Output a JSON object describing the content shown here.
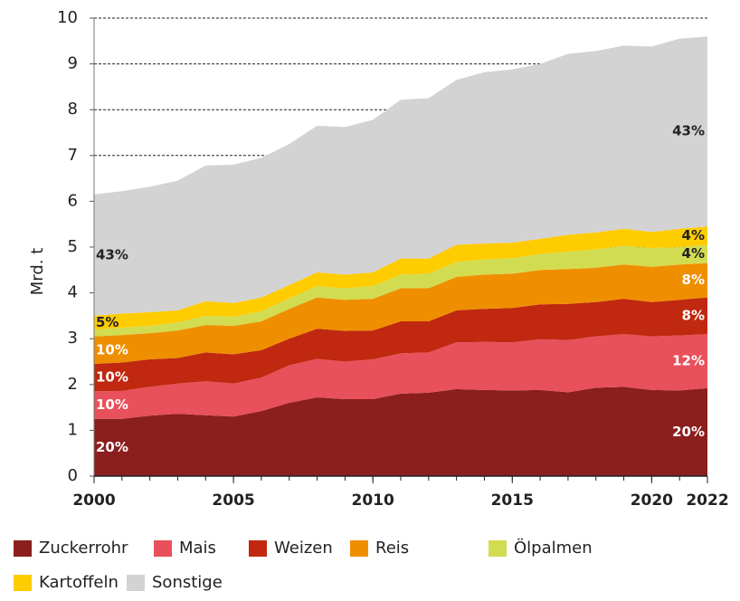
{
  "chart_data": {
    "type": "stacked-area",
    "y_label": "Mrd. t",
    "x": [
      2000,
      2001,
      2002,
      2003,
      2004,
      2005,
      2006,
      2007,
      2008,
      2009,
      2010,
      2011,
      2012,
      2013,
      2014,
      2015,
      2016,
      2017,
      2018,
      2019,
      2020,
      2021,
      2022
    ],
    "xlim": [
      2000,
      2022
    ],
    "xticks": [
      2000,
      2005,
      2010,
      2015,
      2020,
      2022
    ],
    "ylim": [
      0,
      10
    ],
    "yticks": [
      0,
      1,
      2,
      3,
      4,
      5,
      6,
      7,
      8,
      9,
      10
    ],
    "grid": true,
    "series": [
      {
        "name": "Zuckerrohr",
        "color": "#8b1e1e",
        "labels": [
          "20%",
          "20%"
        ],
        "values": [
          1.25,
          1.25,
          1.32,
          1.36,
          1.33,
          1.3,
          1.42,
          1.6,
          1.72,
          1.68,
          1.68,
          1.8,
          1.82,
          1.9,
          1.88,
          1.87,
          1.88,
          1.83,
          1.93,
          1.95,
          1.88,
          1.87,
          1.92
        ]
      },
      {
        "name": "Mais",
        "color": "#e8505b",
        "labels": [
          "10%",
          "12%"
        ],
        "values": [
          0.6,
          0.61,
          0.63,
          0.66,
          0.74,
          0.72,
          0.73,
          0.82,
          0.84,
          0.82,
          0.87,
          0.88,
          0.88,
          1.02,
          1.05,
          1.05,
          1.11,
          1.14,
          1.12,
          1.15,
          1.17,
          1.2,
          1.18
        ]
      },
      {
        "name": "Weizen",
        "color": "#c0280f",
        "labels": [
          "10%",
          "8%"
        ],
        "values": [
          0.6,
          0.62,
          0.6,
          0.56,
          0.63,
          0.64,
          0.6,
          0.58,
          0.66,
          0.67,
          0.63,
          0.7,
          0.68,
          0.7,
          0.72,
          0.75,
          0.76,
          0.79,
          0.75,
          0.77,
          0.75,
          0.78,
          0.8
        ]
      },
      {
        "name": "Reis",
        "color": "#ef8f00",
        "labels": [
          "10%",
          "8%"
        ],
        "values": [
          0.6,
          0.6,
          0.57,
          0.6,
          0.6,
          0.62,
          0.63,
          0.65,
          0.68,
          0.68,
          0.69,
          0.72,
          0.72,
          0.73,
          0.75,
          0.75,
          0.75,
          0.76,
          0.75,
          0.75,
          0.77,
          0.77,
          0.75
        ]
      },
      {
        "name": "Ölpalmen",
        "color": "#d2dc50",
        "labels": [
          null,
          "4%"
        ],
        "values": [
          0.15,
          0.16,
          0.16,
          0.18,
          0.2,
          0.2,
          0.22,
          0.23,
          0.25,
          0.25,
          0.28,
          0.3,
          0.32,
          0.33,
          0.33,
          0.34,
          0.35,
          0.38,
          0.4,
          0.41,
          0.41,
          0.38,
          0.4
        ]
      },
      {
        "name": "Kartoffeln",
        "color": "#ffcc00",
        "labels": [
          "5%",
          "4%"
        ],
        "values": [
          0.3,
          0.31,
          0.3,
          0.26,
          0.32,
          0.3,
          0.3,
          0.29,
          0.3,
          0.3,
          0.3,
          0.35,
          0.33,
          0.37,
          0.35,
          0.34,
          0.33,
          0.37,
          0.37,
          0.37,
          0.35,
          0.4,
          0.4
        ]
      },
      {
        "name": "Sonstige",
        "color": "#d3d3d3",
        "labels": [
          "43%",
          "43%"
        ],
        "values": [
          2.65,
          2.67,
          2.74,
          2.83,
          2.96,
          3.02,
          3.05,
          3.08,
          3.2,
          3.22,
          3.33,
          3.47,
          3.5,
          3.6,
          3.74,
          3.78,
          3.82,
          3.95,
          3.96,
          4.0,
          4.05,
          4.15,
          4.15
        ]
      }
    ]
  }
}
